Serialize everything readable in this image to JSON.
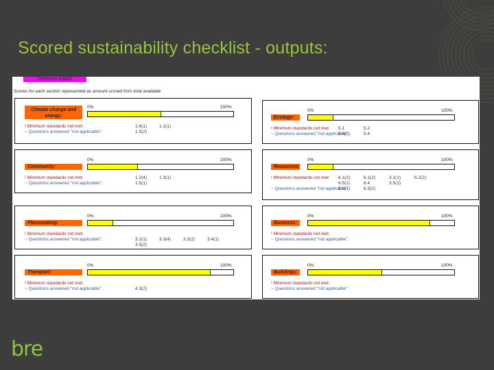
{
  "slide": {
    "title": "Scored sustainability checklist - outputs:",
    "logo_text": "bre",
    "colors": {
      "background": "#3d3d3d",
      "title": "#9cc43a",
      "logo": "#8dc63f"
    }
  },
  "report": {
    "badge": "Overview report:",
    "subtitle": "Scores for each section represented as amount scored from total available",
    "scale_min": "0%",
    "scale_max": "100%",
    "colors": {
      "badge": "#ff00ff",
      "category": "#ff6600",
      "bar_fill": "#ffff00",
      "min_standards": "#a31515",
      "not_applicable": "#3a5a9a"
    },
    "sections": [
      {
        "name": "Climate change and energy:",
        "score_pct": 50,
        "min_label": "! Minimum standards not met:",
        "min_codes": [
          "1.6(1)",
          "1.1(1)"
        ],
        "na_label": "~ Questions answered \"not applicable\":",
        "na_codes": [
          "1.5(2)"
        ]
      },
      {
        "name": "Ecology:",
        "score_pct": 17,
        "min_label": "! Minimum standards not met:",
        "min_codes": [
          "5.1",
          "5.2"
        ],
        "na_label": "~ Questions answered \"not applicable\":",
        "na_codes": [
          "5.3(2)",
          "5.4"
        ]
      },
      {
        "name": "Community:",
        "score_pct": 34,
        "min_label": "! Minimum standards not met:",
        "min_codes": [
          "1.2(4)",
          "1.3(1)"
        ],
        "na_label": "~ Questions answered \"not applicable\":",
        "na_codes": [
          "1.5(1)"
        ]
      },
      {
        "name": "Resources:",
        "score_pct": 17,
        "min_label": "! Minimum standards not met:",
        "min_codes": [
          "6.1(2)",
          "6.1(2)",
          "3.1(1)",
          "6.2(2)",
          "6.5(1)",
          "6.4",
          "3.5(1)"
        ],
        "na_label": "~ Questions answered \"not applicable\":",
        "na_codes": [
          "6.2(1)",
          "6.3(2)"
        ]
      },
      {
        "name": "Placemaking:",
        "score_pct": 17,
        "min_label": "! Minimum standards not met:",
        "min_codes": [],
        "na_label": "~ Questions answered \"not applicable\":",
        "na_codes": [
          "3.1(1)",
          "3.3(4)",
          "3.3(2)",
          "3.4(1)",
          "3.5(2)"
        ]
      },
      {
        "name": "Business:",
        "score_pct": 83,
        "min_label": "! Minimum standards not met:",
        "min_codes": [],
        "na_label": "~ Questions answered \"not applicable\":",
        "na_codes": []
      },
      {
        "name": "Transport:",
        "score_pct": 84,
        "min_label": "! Minimum standards not met:",
        "min_codes": [],
        "na_label": "~ Questions answered \"not applicable\":",
        "na_codes": [
          "4.3(2)"
        ]
      },
      {
        "name": "Buildings:",
        "score_pct": 50,
        "min_label": "! Minimum standards not met:",
        "min_codes": [],
        "na_label": "~ Questions answered \"not applicable\":",
        "na_codes": []
      }
    ]
  }
}
